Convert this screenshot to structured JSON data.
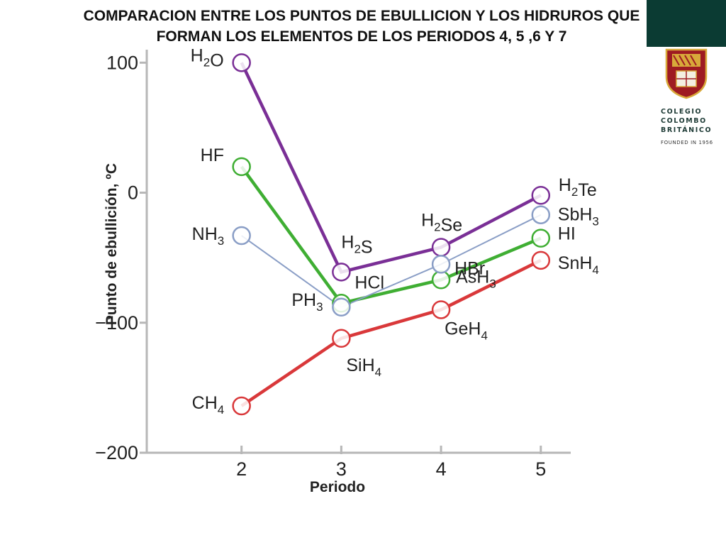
{
  "title": "COMPARACION ENTRE LOS PUNTOS DE EBULLICION Y LOS HIDRUROS QUE FORMAN LOS ELEMENTOS DE LOS PERIODOS 4, 5 ,6 Y 7",
  "logo": {
    "line1": "COLEGIO",
    "line2": "COLOMBO",
    "line3": "BRITÁNICO",
    "founded": "FOUNDED IN 1956",
    "colors": {
      "bar": "#0b3b33",
      "crest_red": "#9e1b22",
      "crest_gold": "#d8a93a"
    }
  },
  "chart_data": {
    "type": "line",
    "xlabel": "Periodo",
    "ylabel": "Punto de ebullición, ºC",
    "x": [
      2,
      3,
      4,
      5
    ],
    "xlim": [
      1.05,
      5.3
    ],
    "ylim": [
      -200,
      110
    ],
    "yticks": [
      100,
      0,
      -100,
      -200
    ],
    "ytick_labels": [
      "100",
      "0",
      "−100",
      "−200"
    ],
    "xticks": [
      2,
      3,
      4,
      5
    ],
    "xtick_labels": [
      "2",
      "3",
      "4",
      "5"
    ],
    "grid": false,
    "series": [
      {
        "color": "#7a2f96",
        "values": [
          100,
          -61,
          -42,
          -2
        ],
        "labels": [
          "H2O",
          "H2S",
          "H2Se",
          "H2Te"
        ]
      },
      {
        "color": "#3fae33",
        "values": [
          20,
          -85,
          -67,
          -35
        ],
        "labels": [
          "HF",
          "HCl",
          "HBr",
          "HI"
        ]
      },
      {
        "color": "#8a9ec6",
        "values": [
          -33,
          -88,
          -55,
          -17
        ],
        "labels": [
          "NH3",
          "PH3",
          "AsH3",
          "SbH3"
        ]
      },
      {
        "color": "#d9383a",
        "values": [
          -164,
          -112,
          -90,
          -52
        ],
        "labels": [
          "CH4",
          "SiH4",
          "GeH4",
          "SnH4"
        ]
      }
    ]
  }
}
